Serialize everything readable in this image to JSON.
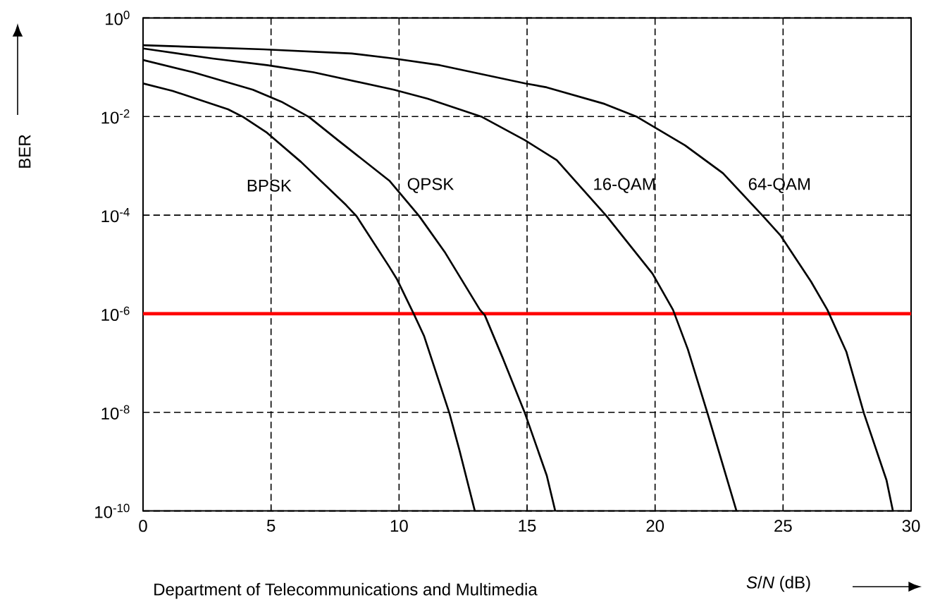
{
  "chart_data": {
    "type": "line",
    "xlabel": "*S*/*N* (dB)",
    "ylabel": "BER",
    "annotations": [
      "Department of Telecommunications and Multimedia"
    ],
    "log": "y",
    "grid": true,
    "legend": false,
    "marker": "none",
    "line_style": "solid",
    "xlim": [
      0,
      30
    ],
    "xticks": [
      0,
      5,
      10,
      15,
      20,
      25,
      30
    ],
    "ylim": [
      1e-10,
      1
    ],
    "yticks": [
      {
        "value": 1,
        "label": "10$^{0}$"
      },
      {
        "value": 0.01,
        "label": "10$^{-2}$"
      },
      {
        "value": 0.0001,
        "label": "10$^{-4}$"
      },
      {
        "value": 1e-06,
        "label": "10$^{-6}$"
      },
      {
        "value": 1e-08,
        "label": "10$^{-8}$"
      },
      {
        "value": 1e-10,
        "label": "10$^{-10}$"
      }
    ],
    "ref_lines": [
      {
        "axis": "y",
        "value": 1e-06,
        "color": "#ff0000"
      }
    ],
    "series": [
      {
        "name": "BPSK",
        "color": "#000000",
        "x": [
          0,
          1.16,
          3.32,
          3.91,
          4.84,
          6.17,
          7.93,
          8.34,
          9.61,
          9.91,
          10.6,
          10.98,
          11.97,
          12.36,
          12.96
        ],
        "values": [
          0.047,
          0.033,
          0.014,
          0.0098,
          0.0047,
          0.0012,
          0.00016,
          9.5e-05,
          9.1e-06,
          5.1e-06,
          9.3e-07,
          3.5e-07,
          9.5e-09,
          1.7e-09,
          1e-10
        ]
      },
      {
        "name": "QPSK",
        "color": "#000000",
        "x": [
          0,
          1.96,
          4.29,
          5.4,
          6.48,
          7.65,
          9.62,
          10.79,
          11.78,
          13.16,
          13.35,
          14.04,
          14.92,
          15.77,
          16.1
        ],
        "values": [
          0.14,
          0.079,
          0.035,
          0.02,
          0.0098,
          0.0032,
          0.0005,
          9.5e-05,
          1.8e-05,
          1.2e-06,
          9.3e-07,
          1.3e-07,
          9.5e-09,
          5.2e-10,
          1e-10
        ]
      },
      {
        "name": "16-QAM",
        "color": "#000000",
        "x": [
          0,
          2.72,
          4.84,
          6.66,
          9.8,
          11.12,
          13.24,
          14.92,
          16.16,
          18.11,
          19.9,
          20.7,
          21.28,
          22.05,
          23.18
        ],
        "values": [
          0.24,
          0.15,
          0.11,
          0.079,
          0.035,
          0.023,
          0.0098,
          0.0033,
          0.0013,
          9.5e-05,
          6.5e-06,
          1.2e-06,
          1.9e-07,
          9.5e-09,
          1e-10
        ]
      },
      {
        "name": "64-QAM",
        "color": "#000000",
        "x": [
          0,
          4.71,
          8.15,
          9.8,
          11.59,
          14.92,
          15.77,
          18.03,
          19.3,
          21.17,
          22.65,
          24.22,
          24.91,
          26.09,
          26.73,
          27.47,
          28.16,
          29.04,
          29.29
        ],
        "values": [
          0.28,
          0.23,
          0.19,
          0.15,
          0.11,
          0.047,
          0.039,
          0.018,
          0.0098,
          0.0026,
          0.00071,
          9.5e-05,
          3.8e-05,
          4.5e-06,
          1.2e-06,
          1.7e-07,
          9.5e-09,
          4.2e-10,
          1e-10
        ]
      }
    ]
  }
}
